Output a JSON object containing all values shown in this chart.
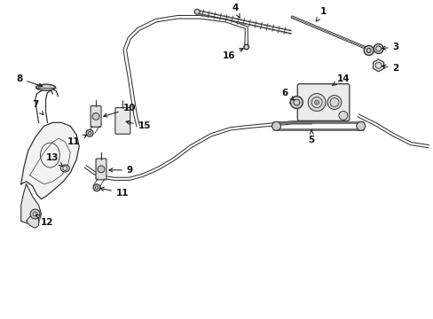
{
  "background_color": "#ffffff",
  "line_color": "#333333",
  "text_color": "#111111",
  "fig_width": 4.89,
  "fig_height": 3.6,
  "dpi": 100
}
